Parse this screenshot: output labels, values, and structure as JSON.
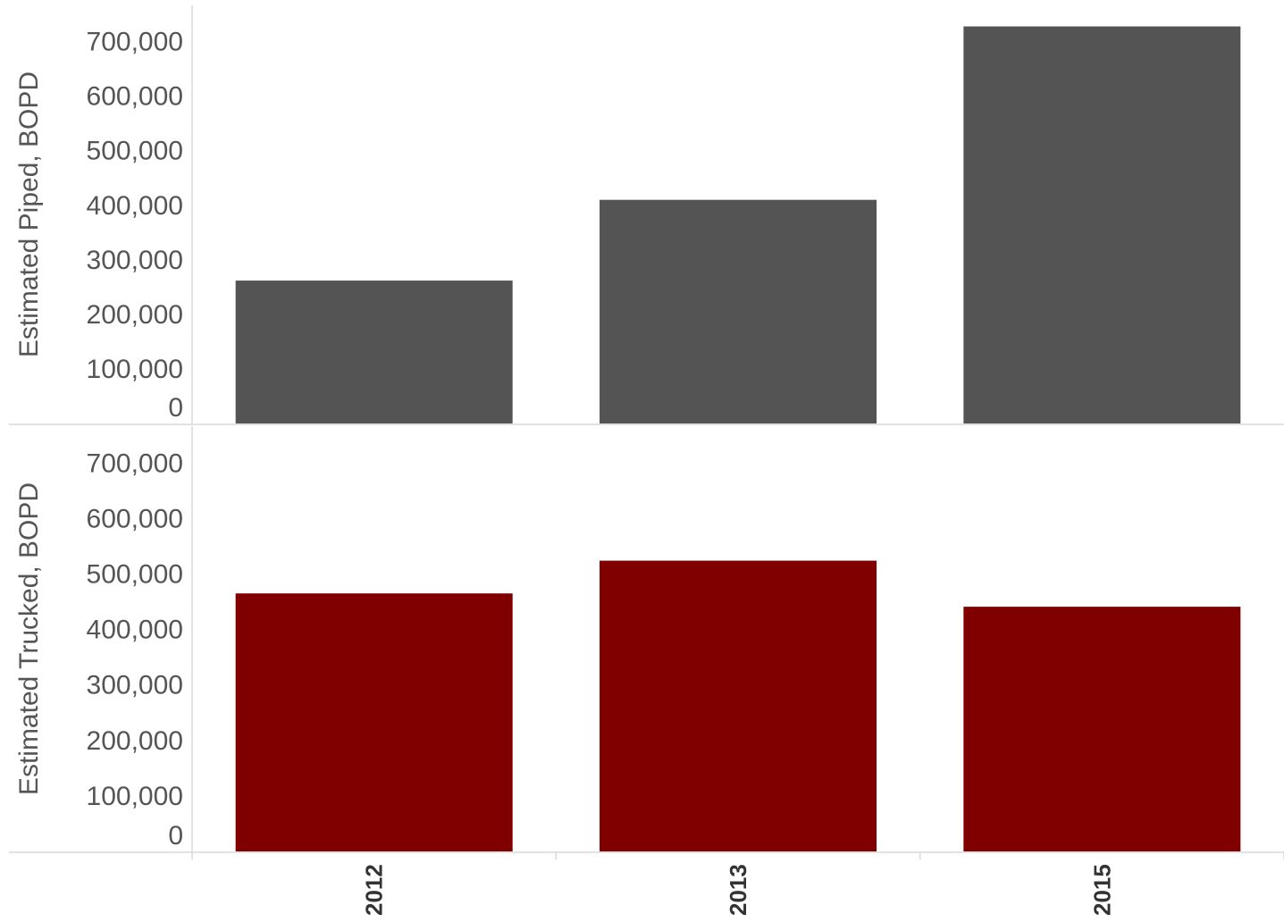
{
  "chart_data": [
    {
      "type": "bar",
      "categories": [
        "2012",
        "2013",
        "2015"
      ],
      "series": [
        {
          "values": [
            262000,
            410000,
            728000
          ]
        }
      ],
      "ylabel": "Estimated Piped, BOPD",
      "ylim": [
        0,
        760000
      ],
      "yticks": [
        0,
        100000,
        200000,
        300000,
        400000,
        500000,
        600000,
        700000
      ],
      "ytick_labels": [
        "0",
        "100,000",
        "200,000",
        "300,000",
        "400,000",
        "500,000",
        "600,000",
        "700,000"
      ],
      "color": "#545454",
      "grid": false
    },
    {
      "type": "bar",
      "categories": [
        "2012",
        "2013",
        "2015"
      ],
      "series": [
        {
          "values": [
            465000,
            524000,
            441000
          ]
        }
      ],
      "ylabel": "Estimated Trucked, BOPD",
      "ylim": [
        0,
        760000
      ],
      "yticks": [
        0,
        100000,
        200000,
        300000,
        400000,
        500000,
        600000,
        700000
      ],
      "ytick_labels": [
        "0",
        "100,000",
        "200,000",
        "300,000",
        "400,000",
        "500,000",
        "600,000",
        "700,000"
      ],
      "color": "#800000",
      "grid": false
    }
  ],
  "x_axis": {
    "categories": [
      "2012",
      "2013",
      "2015"
    ]
  }
}
